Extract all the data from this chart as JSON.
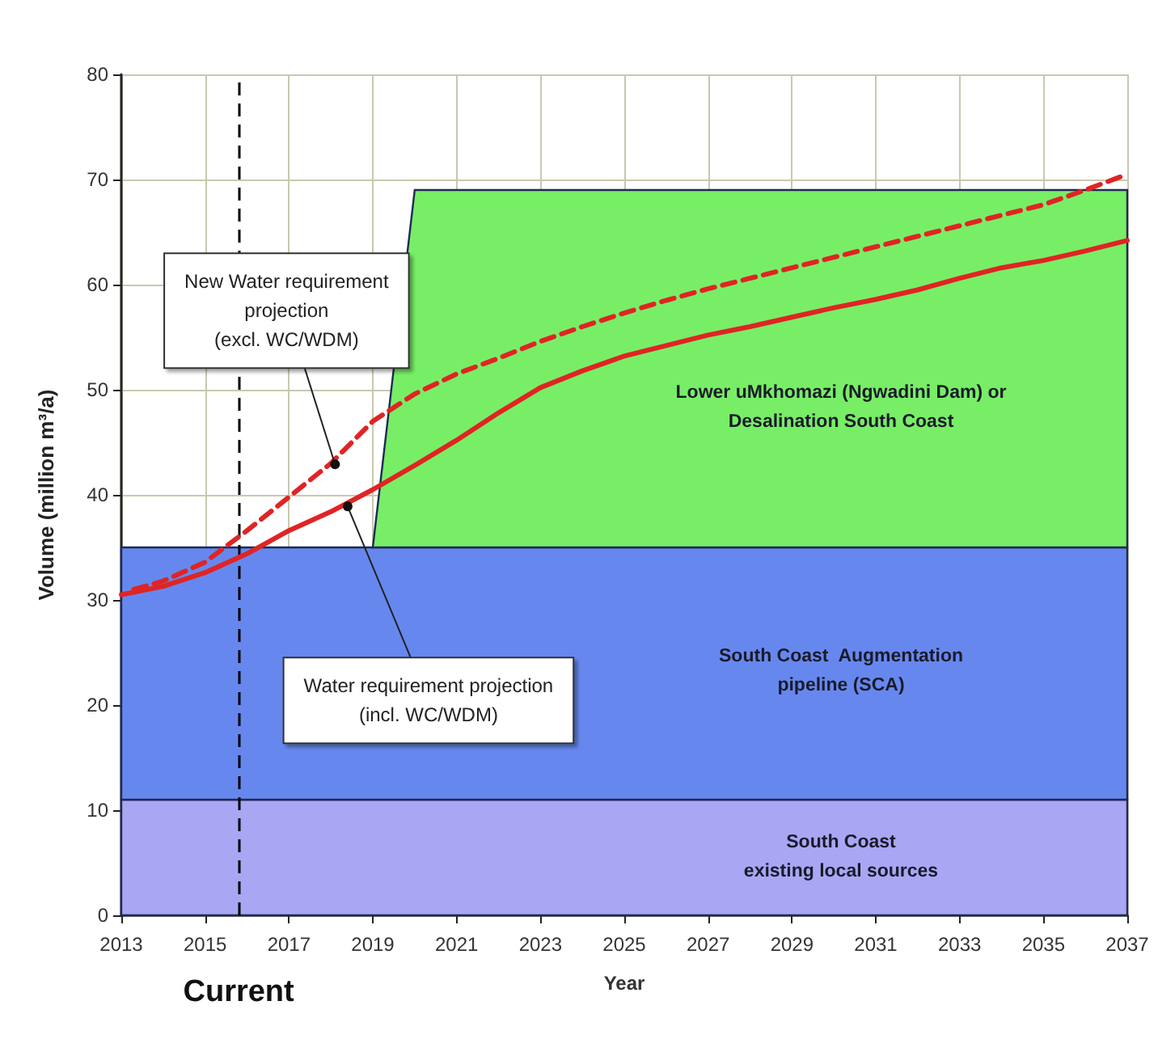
{
  "chart_data": {
    "type": "line",
    "xlabel": "Year",
    "ylabel": "Volume (million m³/a)",
    "xlim": [
      2013,
      2037
    ],
    "xticks": [
      2013,
      2015,
      2017,
      2019,
      2021,
      2023,
      2025,
      2027,
      2029,
      2031,
      2033,
      2035,
      2037
    ],
    "ylim": [
      0,
      80
    ],
    "yticks": [
      0,
      10,
      20,
      30,
      40,
      50,
      60,
      70,
      80
    ],
    "grid": true,
    "stacked": true,
    "marker": "none",
    "x": [
      2013,
      2019,
      2020,
      2037
    ],
    "series": [
      {
        "type": "area",
        "color": "#a9a6f4",
        "values": [
          11,
          11,
          11,
          11
        ]
      },
      {
        "type": "area",
        "color": "#6688ee",
        "values": [
          24,
          24,
          24,
          24
        ]
      },
      {
        "type": "area",
        "color": "#78ee66",
        "values": [
          null,
          0,
          34,
          34
        ]
      },
      {
        "color": "#e02424",
        "line_style": "dashed",
        "x": [
          2013.3,
          2014,
          2015,
          2016,
          2017,
          2018,
          2019,
          2020,
          2021,
          2022,
          2023,
          2024,
          2025,
          2026,
          2027,
          2028,
          2029,
          2030,
          2031,
          2032,
          2033,
          2034,
          2035,
          2036,
          2037
        ],
        "values": [
          31.0,
          31.8,
          33.6,
          36.6,
          39.8,
          43.0,
          47.0,
          49.6,
          51.5,
          53.0,
          54.6,
          56.0,
          57.3,
          58.5,
          59.6,
          60.6,
          61.6,
          62.6,
          63.6,
          64.6,
          65.6,
          66.6,
          67.6,
          69.0,
          70.5
        ]
      },
      {
        "color": "#e02424",
        "line_style": "solid",
        "x": [
          2013,
          2014,
          2015,
          2016,
          2017,
          2018,
          2019,
          2020,
          2021,
          2022,
          2023,
          2024,
          2025,
          2026,
          2027,
          2028,
          2029,
          2030,
          2031,
          2032,
          2033,
          2034,
          2035,
          2036,
          2037
        ],
        "values": [
          30.5,
          31.3,
          32.6,
          34.4,
          36.6,
          38.4,
          40.5,
          42.8,
          45.2,
          47.8,
          50.2,
          51.8,
          53.2,
          54.2,
          55.2,
          56.0,
          56.9,
          57.8,
          58.6,
          59.5,
          60.6,
          61.6,
          62.3,
          63.2,
          64.2
        ]
      }
    ],
    "ref_lines": [
      {
        "axis": "x",
        "value": 2015.8,
        "label": "Current",
        "color": "#000000",
        "line_style": "dashed"
      }
    ],
    "annotations": [
      {
        "text": "New Water requirement\nprojection\n(excl. WC/WDM)",
        "x": 2018.1,
        "y": 42.9
      },
      {
        "text": "Water requirement projection\n(incl. WC/WDM)",
        "x": 2018.4,
        "y": 38.9
      },
      "Lower uMkhomazi (Ngwadini Dam) or\nDesalination South Coast",
      "South Coast  Augmentation\npipeline (SCA)",
      "South Coast\nexisting local sources"
    ]
  }
}
